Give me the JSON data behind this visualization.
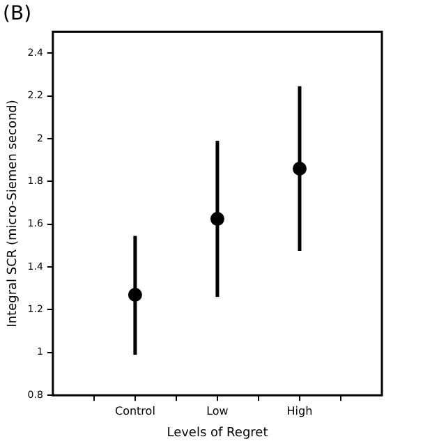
{
  "chart_data": {
    "type": "scatter",
    "title": "(B)",
    "xlabel": "Levels of Regret",
    "ylabel": "Integral SCR (micro-Siemen second)",
    "categories": [
      "Control",
      "Low",
      "High"
    ],
    "series": [
      {
        "color": "#000000",
        "values": [
          1.27,
          1.625,
          1.86
        ],
        "errors": [
          [
            0.99,
            1.545
          ],
          [
            1.26,
            1.99
          ],
          [
            1.475,
            2.245
          ]
        ]
      }
    ],
    "ylim": [
      0.8,
      2.5
    ],
    "yticks": [
      0.8,
      1,
      1.2,
      1.4,
      1.6,
      1.8,
      2,
      2.2,
      2.4
    ],
    "marker": "circle",
    "legend": false
  }
}
